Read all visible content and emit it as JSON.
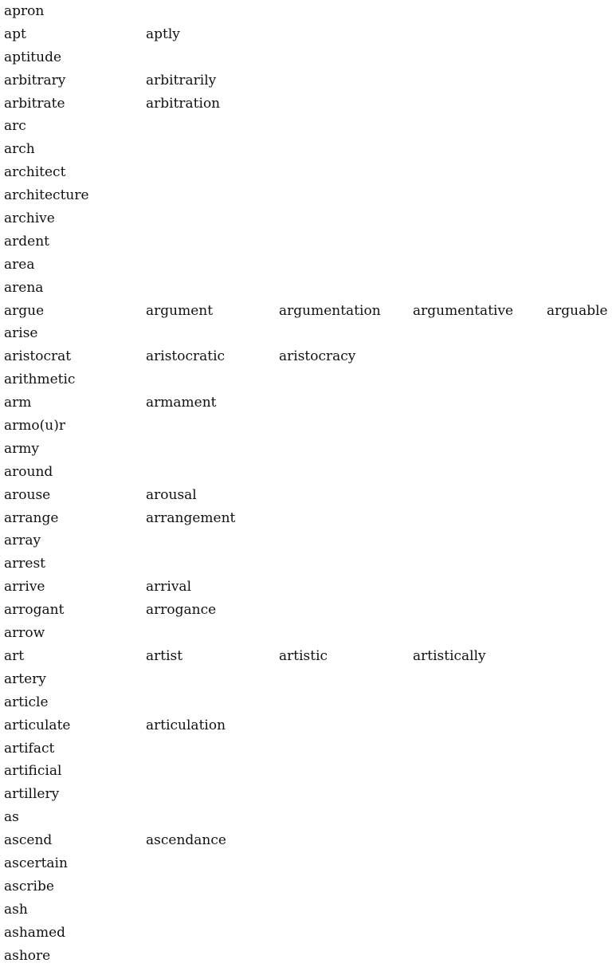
{
  "word_list": {
    "rows": [
      [
        "apron"
      ],
      [
        "apt",
        "aptly"
      ],
      [
        "aptitude"
      ],
      [
        "arbitrary",
        "arbitrarily"
      ],
      [
        "arbitrate",
        "arbitration"
      ],
      [
        "arc"
      ],
      [
        "arch"
      ],
      [
        "architect"
      ],
      [
        "architecture"
      ],
      [
        "archive"
      ],
      [
        "ardent"
      ],
      [
        "area"
      ],
      [
        "arena"
      ],
      [
        "argue",
        "argument",
        "argumentation",
        "argumentative",
        "arguable"
      ],
      [
        "arise"
      ],
      [
        "aristocrat",
        "aristocratic",
        "aristocracy"
      ],
      [
        "arithmetic"
      ],
      [
        "arm",
        "armament"
      ],
      [
        "armo(u)r"
      ],
      [
        "army"
      ],
      [
        "around"
      ],
      [
        "arouse",
        "arousal"
      ],
      [
        "arrange",
        "arrangement"
      ],
      [
        "array"
      ],
      [
        "arrest"
      ],
      [
        "arrive",
        "arrival"
      ],
      [
        "arrogant",
        "arrogance"
      ],
      [
        "arrow"
      ],
      [
        "art",
        "artist",
        "artistic",
        "artistically"
      ],
      [
        "artery"
      ],
      [
        "article"
      ],
      [
        "articulate",
        "articulation"
      ],
      [
        "artifact"
      ],
      [
        "artificial"
      ],
      [
        "artillery"
      ],
      [
        "as"
      ],
      [
        "ascend",
        "ascendance"
      ],
      [
        "ascertain"
      ],
      [
        "ascribe"
      ],
      [
        "ash"
      ],
      [
        "ashamed"
      ],
      [
        "ashore"
      ]
    ]
  }
}
